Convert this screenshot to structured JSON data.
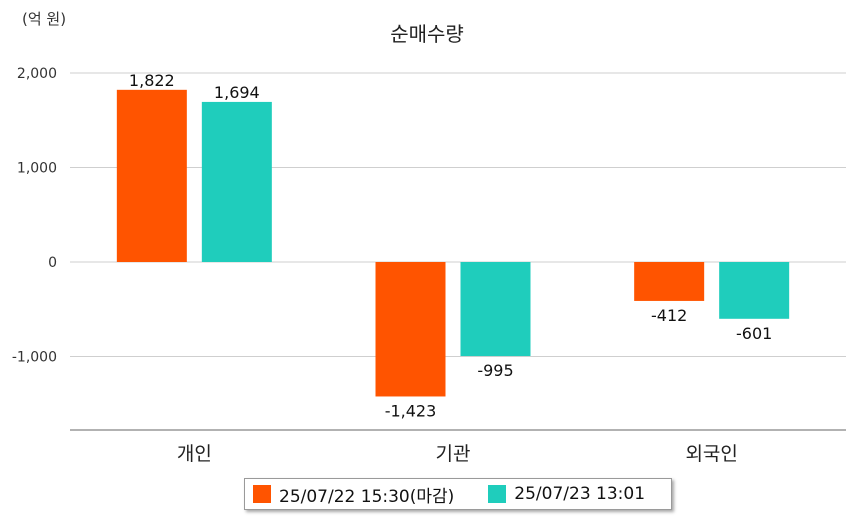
{
  "unit_label": "(억 원)",
  "chart_data": {
    "type": "bar",
    "title": "순매수량",
    "ylabel": "(억 원)",
    "categories": [
      "개인",
      "기관",
      "외국인"
    ],
    "series": [
      {
        "name": "25/07/22 15:30(마감)",
        "color": "#ff5400",
        "values": [
          1822,
          -1423,
          -412
        ],
        "labels": [
          "1,822",
          "-1,423",
          "-412"
        ]
      },
      {
        "name": "25/07/23 13:01",
        "color": "#1fcdbc",
        "values": [
          1694,
          -995,
          -601
        ],
        "labels": [
          "1,694",
          "-995",
          "-601"
        ]
      }
    ],
    "yticks": [
      2000,
      1000,
      0,
      -1000
    ],
    "ytick_labels": [
      "2,000",
      "1,000",
      "0",
      "-1,000"
    ],
    "ylim": [
      -1780,
      2120
    ],
    "grid": true,
    "legend_position": "bottom"
  }
}
